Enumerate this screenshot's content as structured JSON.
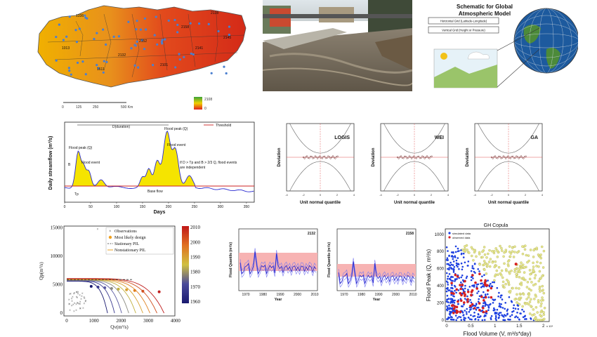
{
  "colors": {
    "turkey_hot": "#e03020",
    "turkey_mid": "#f0b000",
    "turkey_cool": "#3aa33a",
    "flood_fill": "#f5e400",
    "threshold": "#cc2222",
    "series_blue": "#2a2ad0",
    "band_red": "#f7b3b3",
    "copula_sim": "#1c3fe0",
    "copula_obs": "#d62020",
    "copula_outer": "#c8c860"
  },
  "map": {
    "scale_ticks": [
      "0",
      "125",
      "250",
      "500 Km"
    ],
    "legend_high": "2108",
    "legend_low": "0",
    "station_labels": [
      "1336",
      "2138",
      "2158",
      "2152",
      "2132",
      "1611",
      "2141",
      "2101",
      "1013",
      "2145"
    ]
  },
  "river_photo": {
    "alt": "Flooded river photo"
  },
  "globe": {
    "title_line1": "Schematic for Global",
    "title_line2": "Atmospheric Model",
    "box1": "Horizontal Grid (Latitude-Longitude)",
    "box2": "Vertical Grid (Height or Pressure)"
  },
  "hydro": {
    "ylabel": "Daily streamflow (m³/s)",
    "xlabel": "Days",
    "legend_threshold": "Threshold",
    "ann_duration": "D(duration)",
    "ann_peak_left": "Flood peak (Q)",
    "ann_peak_right": "Flood peak (Q)",
    "ann_event_left": "Flood event",
    "ann_event_right": "Flood event",
    "ann_rule_1": "If D > Tp and B > 2/3 Q, flood events",
    "ann_rule_2": "are independent",
    "ann_base": "Base flow",
    "ann_tp": "Tp",
    "ann_b": "B",
    "xticks": [
      "0",
      "50",
      "100",
      "150",
      "200",
      "250",
      "300",
      "350"
    ]
  },
  "dev_panels": [
    {
      "name": "LOGIS",
      "ylabel": "Deviation",
      "xlabel": "Unit normal quantile"
    },
    {
      "name": "WEI",
      "ylabel": "Deviation",
      "xlabel": "Unit normal quantile"
    },
    {
      "name": "GA",
      "ylabel": "Deviation",
      "xlabel": "Unit normal quantile"
    }
  ],
  "design": {
    "ylabel": "Qp(m³/s)",
    "xlabel": "Qv(m³/s)",
    "legend": [
      "Observations",
      "Most likely design",
      "Stationary PIL",
      "Nonstationary PIL"
    ],
    "yticks": [
      "0",
      "5000",
      "10000",
      "15000"
    ],
    "xticks": [
      "0",
      "1000",
      "2000",
      "3000",
      "4000"
    ],
    "colorbar_ticks": [
      "1960",
      "1970",
      "1980",
      "1990",
      "2000",
      "2010"
    ]
  },
  "fq": [
    {
      "station": "2132",
      "ylabel": "Flood Quantile (m³/s)",
      "xlabel": "Year",
      "xticks": [
        "1970",
        "1980",
        "1990",
        "2000",
        "2010"
      ]
    },
    {
      "station": "2158",
      "ylabel": "Flood Quantile (m³/s)",
      "xlabel": "Year",
      "xticks": [
        "1970",
        "1980",
        "1990",
        "2000",
        "2010"
      ]
    }
  ],
  "copula": {
    "title": "GH Copula",
    "ylabel": "Flood Peak (Q, m³/s)",
    "xlabel": "Flood Volume (V, m³/s*day)",
    "legend_sim": "simulated data",
    "legend_obs": "observed data",
    "yticks": [
      "0",
      "200",
      "400",
      "600",
      "800",
      "1000"
    ],
    "xticks": [
      "0",
      "0.5",
      "1",
      "1.5",
      "2"
    ],
    "xexp": "x 10⁴"
  },
  "chart_data": [
    {
      "type": "line",
      "title": "",
      "xlabel": "Days",
      "ylabel": "Daily streamflow (m³/s)",
      "series": [
        {
          "name": "Threshold",
          "values": []
        }
      ],
      "xlim": [
        0,
        365
      ]
    },
    {
      "type": "scatter",
      "title": "",
      "xlabel": "Unit normal quantile",
      "ylabel": "Deviation",
      "panels": [
        "LOGIS",
        "WEI",
        "GA"
      ],
      "xlim": [
        -4,
        4
      ]
    },
    {
      "type": "scatter",
      "title": "",
      "xlabel": "Qv(m³/s)",
      "ylabel": "Qp(m³/s)",
      "xlim": [
        0,
        4000
      ],
      "ylim": [
        0,
        15000
      ],
      "series": [
        {
          "name": "Observations"
        },
        {
          "name": "Most likely design"
        },
        {
          "name": "Stationary PIL"
        },
        {
          "name": "Nonstationary PIL"
        }
      ]
    },
    {
      "type": "line",
      "title": "",
      "xlabel": "Year",
      "ylabel": "Flood Quantile (m³/s)",
      "panels": [
        "2132",
        "2158"
      ],
      "xlim": [
        1965,
        2012
      ]
    },
    {
      "type": "scatter",
      "title": "GH Copula",
      "xlabel": "Flood Volume (V, m³/s*day)",
      "ylabel": "Flood Peak (Q, m³/s)",
      "series": [
        {
          "name": "simulated data"
        },
        {
          "name": "observed data"
        }
      ],
      "xlim": [
        0,
        2
      ],
      "ylim": [
        0,
        1000
      ]
    }
  ]
}
